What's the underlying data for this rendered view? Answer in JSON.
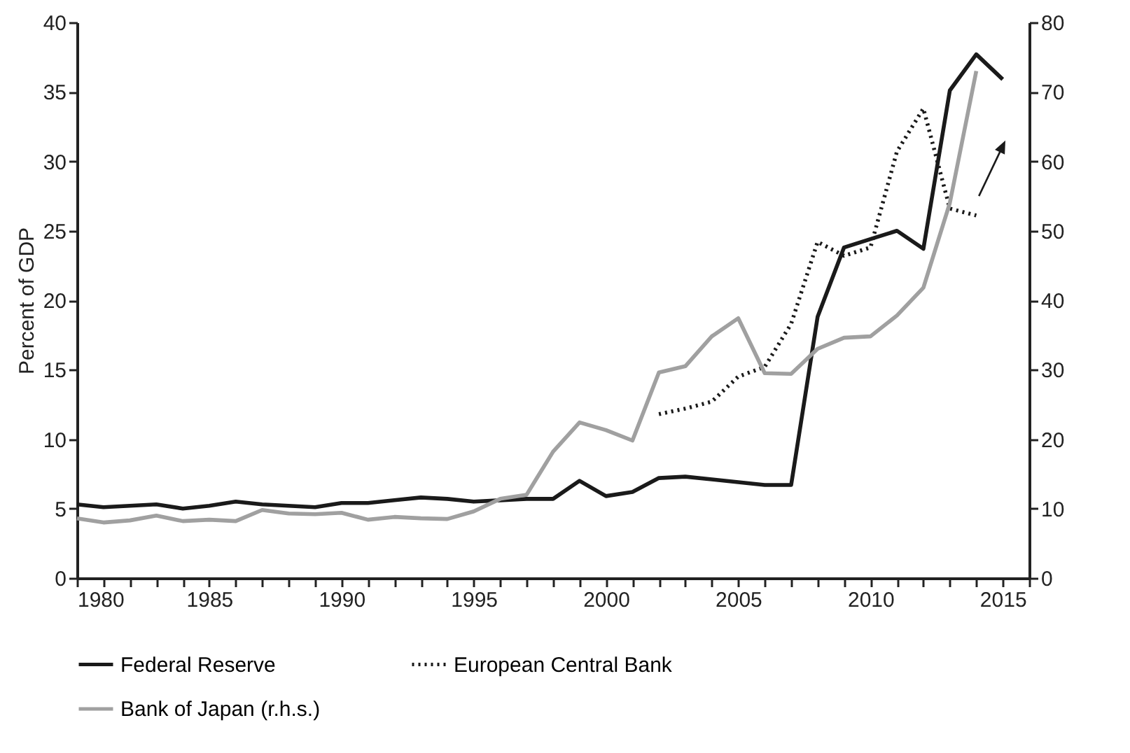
{
  "chart_data": {
    "type": "line",
    "ylabel": "Percent of GDP",
    "x": [
      1980,
      1981,
      1982,
      1983,
      1984,
      1985,
      1986,
      1987,
      1988,
      1989,
      1990,
      1991,
      1992,
      1993,
      1994,
      1995,
      1996,
      1997,
      1998,
      1999,
      2000,
      2001,
      2002,
      2003,
      2004,
      2005,
      2006,
      2007,
      2008,
      2009,
      2010,
      2011,
      2012,
      2013,
      2014,
      2015
    ],
    "series": [
      {
        "name": "Federal Reserve",
        "color": "#1a1a1a",
        "line_style": "solid",
        "values": [
          5.3,
          5.1,
          5.2,
          5.3,
          5.0,
          5.2,
          5.5,
          5.3,
          5.2,
          5.1,
          5.4,
          5.4,
          5.6,
          5.8,
          5.7,
          5.5,
          5.6,
          5.7,
          5.7,
          7.0,
          5.9,
          6.2,
          7.2,
          7.3,
          7.1,
          6.9,
          6.7,
          6.7,
          18.8,
          23.8,
          24.4,
          25.0,
          23.7,
          35.1,
          37.7,
          35.9
        ]
      },
      {
        "name": "European Central Bank",
        "color": "#1a1a1a",
        "line_style": "dotted",
        "values": [
          null,
          null,
          null,
          null,
          null,
          null,
          null,
          null,
          null,
          null,
          null,
          null,
          null,
          null,
          null,
          null,
          null,
          null,
          null,
          null,
          null,
          null,
          11.8,
          12.2,
          12.7,
          14.5,
          15.2,
          18.3,
          24.2,
          23.2,
          23.8,
          30.7,
          33.8,
          26.6,
          26.1,
          null
        ]
      },
      {
        "name": "Bank of Japan (r.h.s.)",
        "color": "#a0a0a0",
        "line_style": "solid",
        "axis": "y2",
        "values": [
          8.6,
          8.0,
          8.3,
          9.0,
          8.2,
          8.4,
          8.2,
          9.8,
          9.3,
          9.2,
          9.4,
          8.4,
          8.8,
          8.6,
          8.5,
          9.6,
          11.4,
          12.0,
          18.2,
          22.4,
          21.3,
          19.8,
          29.6,
          30.5,
          34.8,
          37.4,
          29.5,
          29.4,
          33.0,
          34.6,
          34.8,
          37.8,
          41.8,
          54.0,
          73.0,
          null
        ]
      }
    ],
    "xlim": [
      1980,
      2016
    ],
    "xticks": [
      1980,
      {
        "value": 1981,
        "label": null
      },
      {
        "value": 1982,
        "label": null
      },
      {
        "value": 1983,
        "label": null
      },
      {
        "value": 1984,
        "label": null
      },
      1985,
      {
        "value": 1986,
        "label": null
      },
      {
        "value": 1987,
        "label": null
      },
      {
        "value": 1988,
        "label": null
      },
      {
        "value": 1989,
        "label": null
      },
      1990,
      {
        "value": 1991,
        "label": null
      },
      {
        "value": 1992,
        "label": null
      },
      {
        "value": 1993,
        "label": null
      },
      {
        "value": 1994,
        "label": null
      },
      1995,
      {
        "value": 1996,
        "label": null
      },
      {
        "value": 1997,
        "label": null
      },
      {
        "value": 1998,
        "label": null
      },
      {
        "value": 1999,
        "label": null
      },
      2000,
      {
        "value": 2001,
        "label": null
      },
      {
        "value": 2002,
        "label": null
      },
      {
        "value": 2003,
        "label": null
      },
      {
        "value": 2004,
        "label": null
      },
      2005,
      {
        "value": 2006,
        "label": null
      },
      {
        "value": 2007,
        "label": null
      },
      {
        "value": 2008,
        "label": null
      },
      {
        "value": 2009,
        "label": null
      },
      2010,
      {
        "value": 2011,
        "label": null
      },
      {
        "value": 2012,
        "label": null
      },
      {
        "value": 2013,
        "label": null
      },
      {
        "value": 2014,
        "label": null
      },
      2015,
      {
        "value": 2016,
        "label": null
      }
    ],
    "ylim": [
      0,
      40
    ],
    "yticks": [
      0,
      5,
      10,
      15,
      20,
      25,
      30,
      35,
      40
    ],
    "y2lim": [
      0,
      80
    ],
    "y2ticks": [
      0,
      10,
      20,
      30,
      40,
      50,
      60,
      70,
      80
    ],
    "grid": false,
    "legend": "bottom"
  }
}
